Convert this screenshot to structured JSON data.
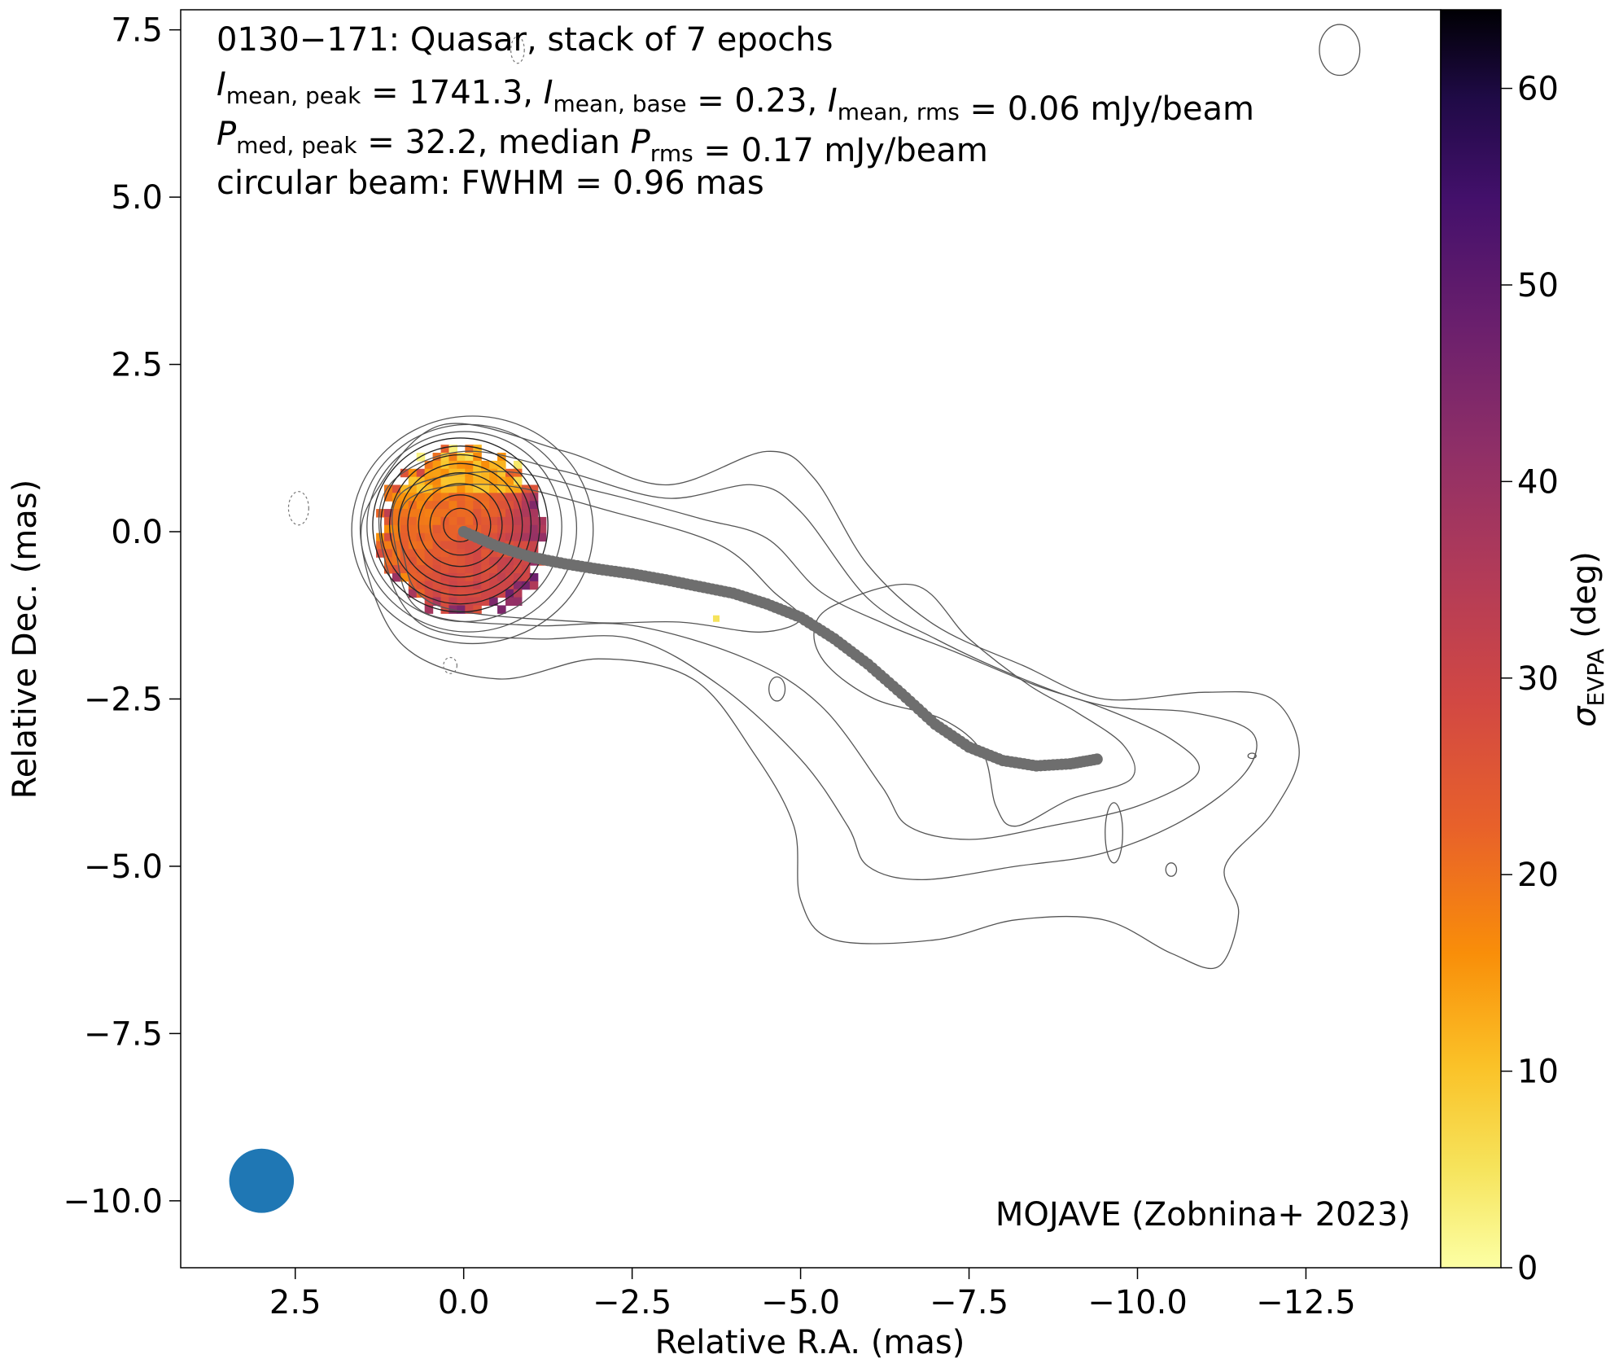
{
  "figure": {
    "title_line1": "0130−171: Quasar, stack of 7 epochs",
    "line2": {
      "parts": [
        {
          "sym": "I",
          "sub": "mean, peak"
        },
        {
          "txt": " = 1741.3, "
        },
        {
          "sym": "I",
          "sub": "mean, base"
        },
        {
          "txt": " = 0.23, "
        },
        {
          "sym": "I",
          "sub": "mean, rms"
        },
        {
          "txt": " = 0.06 mJy/beam"
        }
      ]
    },
    "line3": {
      "parts": [
        {
          "sym": "P",
          "sub": "med, peak"
        },
        {
          "txt": " = 32.2, median "
        },
        {
          "sym": "P",
          "sub": "rms"
        },
        {
          "txt": " = 0.17 mJy/beam"
        }
      ]
    },
    "line4": "circular beam: FWHM = 0.96 mas",
    "credit": "MOJAVE (Zobnina+ 2023)",
    "colorbar_label_symbol": "σ",
    "colorbar_label_sub": "EVPA",
    "colorbar_label_unit": " (deg)"
  },
  "chart_data": {
    "type": "heatmap",
    "xlabel": "Relative R.A. (mas)",
    "ylabel": "Relative Dec. (mas)",
    "xlim": [
      4.2,
      -14.5
    ],
    "ylim": [
      -11.0,
      7.8
    ],
    "xticks": [
      2.5,
      0.0,
      -2.5,
      -5.0,
      -7.5,
      -10.0,
      -12.5
    ],
    "xtick_labels": [
      "2.5",
      "0.0",
      "−2.5",
      "−5.0",
      "−7.5",
      "−10.0",
      "−12.5"
    ],
    "yticks": [
      7.5,
      5.0,
      2.5,
      0.0,
      -2.5,
      -5.0,
      -7.5,
      -10.0
    ],
    "ytick_labels": [
      "7.5",
      "5.0",
      "2.5",
      "0.0",
      "−2.5",
      "−5.0",
      "−7.5",
      "−10.0"
    ],
    "colormap": "inferno_r",
    "colorbar_range": [
      0,
      64
    ],
    "colorbar_ticks": [
      0,
      10,
      20,
      30,
      40,
      50,
      60
    ],
    "colorbar_tick_labels": [
      "0",
      "10",
      "20",
      "30",
      "40",
      "50",
      "60"
    ],
    "grid": false,
    "beam": {
      "center": [
        3.0,
        -9.7
      ],
      "fwhm_mas": 0.96,
      "color": "#1f77b4"
    },
    "ridgeline": {
      "color": "#6e6e6e",
      "points": [
        [
          0,
          0
        ],
        [
          -0.5,
          -0.22
        ],
        [
          -1.0,
          -0.38
        ],
        [
          -1.5,
          -0.48
        ],
        [
          -2.0,
          -0.56
        ],
        [
          -2.5,
          -0.63
        ],
        [
          -3.0,
          -0.72
        ],
        [
          -3.5,
          -0.82
        ],
        [
          -4.0,
          -0.92
        ],
        [
          -4.5,
          -1.08
        ],
        [
          -5.0,
          -1.28
        ],
        [
          -5.5,
          -1.6
        ],
        [
          -6.0,
          -1.98
        ],
        [
          -6.5,
          -2.42
        ],
        [
          -7.0,
          -2.88
        ],
        [
          -7.5,
          -3.22
        ],
        [
          -8.0,
          -3.42
        ],
        [
          -8.5,
          -3.5
        ],
        [
          -9.0,
          -3.47
        ],
        [
          -9.4,
          -3.4
        ]
      ]
    },
    "polarization_region": {
      "center": [
        0.05,
        0.05
      ],
      "radii": [
        1.25,
        1.25
      ],
      "sigma_evpa_core": 24,
      "sigma_evpa_north_east": 10,
      "sigma_evpa_south_west": 40
    },
    "contours": {
      "core_center": [
        0.05,
        0.1
      ],
      "core_radii_mas": [
        0.25,
        0.45,
        0.62,
        0.78,
        0.92,
        1.05,
        1.18,
        1.3,
        1.42,
        1.55,
        1.7
      ],
      "extended_levels": [
        [
          [
            1.3,
            0.6
          ],
          [
            0.3,
            1.6
          ],
          [
            -1.5,
            1.2
          ],
          [
            -3.0,
            0.7
          ],
          [
            -4.5,
            1.2
          ],
          [
            -5.2,
            0.8
          ],
          [
            -6.0,
            -0.5
          ],
          [
            -7.0,
            -1.4
          ],
          [
            -8.3,
            -2.0
          ],
          [
            -9.5,
            -2.5
          ],
          [
            -11.0,
            -2.4
          ],
          [
            -12.0,
            -2.5
          ],
          [
            -12.4,
            -3.3
          ],
          [
            -12.0,
            -4.2
          ],
          [
            -11.3,
            -5.0
          ],
          [
            -11.5,
            -5.7
          ],
          [
            -11.2,
            -6.5
          ],
          [
            -10.5,
            -6.3
          ],
          [
            -9.5,
            -5.8
          ],
          [
            -8.2,
            -5.8
          ],
          [
            -7.0,
            -6.1
          ],
          [
            -5.5,
            -6.1
          ],
          [
            -5.0,
            -5.5
          ],
          [
            -4.9,
            -4.4
          ],
          [
            -4.3,
            -3.3
          ],
          [
            -3.4,
            -2.2
          ],
          [
            -2.0,
            -1.9
          ],
          [
            -0.5,
            -2.2
          ],
          [
            0.9,
            -1.7
          ],
          [
            1.5,
            -0.3
          ]
        ],
        [
          [
            1.1,
            0.7
          ],
          [
            0.0,
            1.2
          ],
          [
            -1.5,
            0.9
          ],
          [
            -3.0,
            0.5
          ],
          [
            -4.3,
            0.7
          ],
          [
            -5.0,
            0.3
          ],
          [
            -6.0,
            -1.0
          ],
          [
            -7.0,
            -1.6
          ],
          [
            -8.3,
            -2.2
          ],
          [
            -9.5,
            -2.6
          ],
          [
            -10.8,
            -2.7
          ],
          [
            -11.7,
            -3.0
          ],
          [
            -11.6,
            -3.6
          ],
          [
            -10.7,
            -4.3
          ],
          [
            -9.5,
            -4.8
          ],
          [
            -8.2,
            -5.0
          ],
          [
            -6.8,
            -5.2
          ],
          [
            -6.0,
            -5.0
          ],
          [
            -5.7,
            -4.4
          ],
          [
            -5.0,
            -3.4
          ],
          [
            -3.8,
            -2.3
          ],
          [
            -2.5,
            -1.6
          ],
          [
            -1.0,
            -1.6
          ],
          [
            0.6,
            -1.4
          ],
          [
            1.2,
            -0.3
          ]
        ],
        [
          [
            0.9,
            0.6
          ],
          [
            -0.5,
            0.9
          ],
          [
            -2.0,
            0.6
          ],
          [
            -3.5,
            0.2
          ],
          [
            -4.5,
            -0.1
          ],
          [
            -5.3,
            -0.9
          ],
          [
            -6.3,
            -1.4
          ],
          [
            -7.3,
            -1.8
          ],
          [
            -8.5,
            -2.3
          ],
          [
            -9.4,
            -2.6
          ],
          [
            -10.5,
            -3.1
          ],
          [
            -10.9,
            -3.6
          ],
          [
            -10.0,
            -4.1
          ],
          [
            -8.7,
            -4.4
          ],
          [
            -7.5,
            -4.6
          ],
          [
            -6.6,
            -4.4
          ],
          [
            -6.2,
            -3.8
          ],
          [
            -5.3,
            -2.6
          ],
          [
            -4.2,
            -1.9
          ],
          [
            -2.5,
            -1.4
          ],
          [
            -1.0,
            -1.4
          ],
          [
            0.6,
            -1.2
          ],
          [
            1.0,
            -0.3
          ]
        ],
        [
          [
            0.8,
            0.5
          ],
          [
            -0.5,
            0.7
          ],
          [
            -2.2,
            0.3
          ],
          [
            -3.8,
            -0.2
          ],
          [
            -4.6,
            -0.9
          ],
          [
            -5.0,
            -1.3
          ],
          [
            -4.4,
            -1.5
          ],
          [
            -3.2,
            -1.35
          ],
          [
            -1.8,
            -1.35
          ],
          [
            0.4,
            -1.1
          ],
          [
            0.9,
            -0.3
          ]
        ],
        [
          [
            -5.5,
            -1.1
          ],
          [
            -6.7,
            -0.8
          ],
          [
            -7.5,
            -1.6
          ],
          [
            -8.4,
            -2.3
          ],
          [
            -9.1,
            -2.7
          ],
          [
            -9.8,
            -3.2
          ],
          [
            -9.9,
            -3.7
          ],
          [
            -9.0,
            -4.0
          ],
          [
            -8.2,
            -4.4
          ],
          [
            -7.9,
            -4.1
          ],
          [
            -7.7,
            -3.3
          ],
          [
            -7.1,
            -2.8
          ],
          [
            -6.1,
            -2.5
          ],
          [
            -5.4,
            -2.0
          ],
          [
            -5.2,
            -1.5
          ]
        ]
      ],
      "small_islands": [
        {
          "center": [
            -4.65,
            -2.35
          ],
          "radii": [
            0.12,
            0.18
          ]
        },
        {
          "center": [
            -9.65,
            -4.5
          ],
          "radii": [
            0.13,
            0.45
          ]
        },
        {
          "center": [
            -10.5,
            -5.05
          ],
          "radii": [
            0.08,
            0.1
          ]
        },
        {
          "center": [
            -13.0,
            7.2
          ],
          "radii": [
            0.3,
            0.38
          ]
        },
        {
          "center": [
            -11.7,
            -3.35
          ],
          "radii": [
            0.06,
            0.04
          ]
        }
      ],
      "negative_islands": [
        {
          "center": [
            2.45,
            0.35
          ],
          "radii": [
            0.15,
            0.25
          ]
        },
        {
          "center": [
            0.2,
            -2.0
          ],
          "radii": [
            0.1,
            0.12
          ]
        },
        {
          "center": [
            -0.8,
            7.2
          ],
          "radii": [
            0.1,
            0.2
          ]
        }
      ]
    }
  }
}
